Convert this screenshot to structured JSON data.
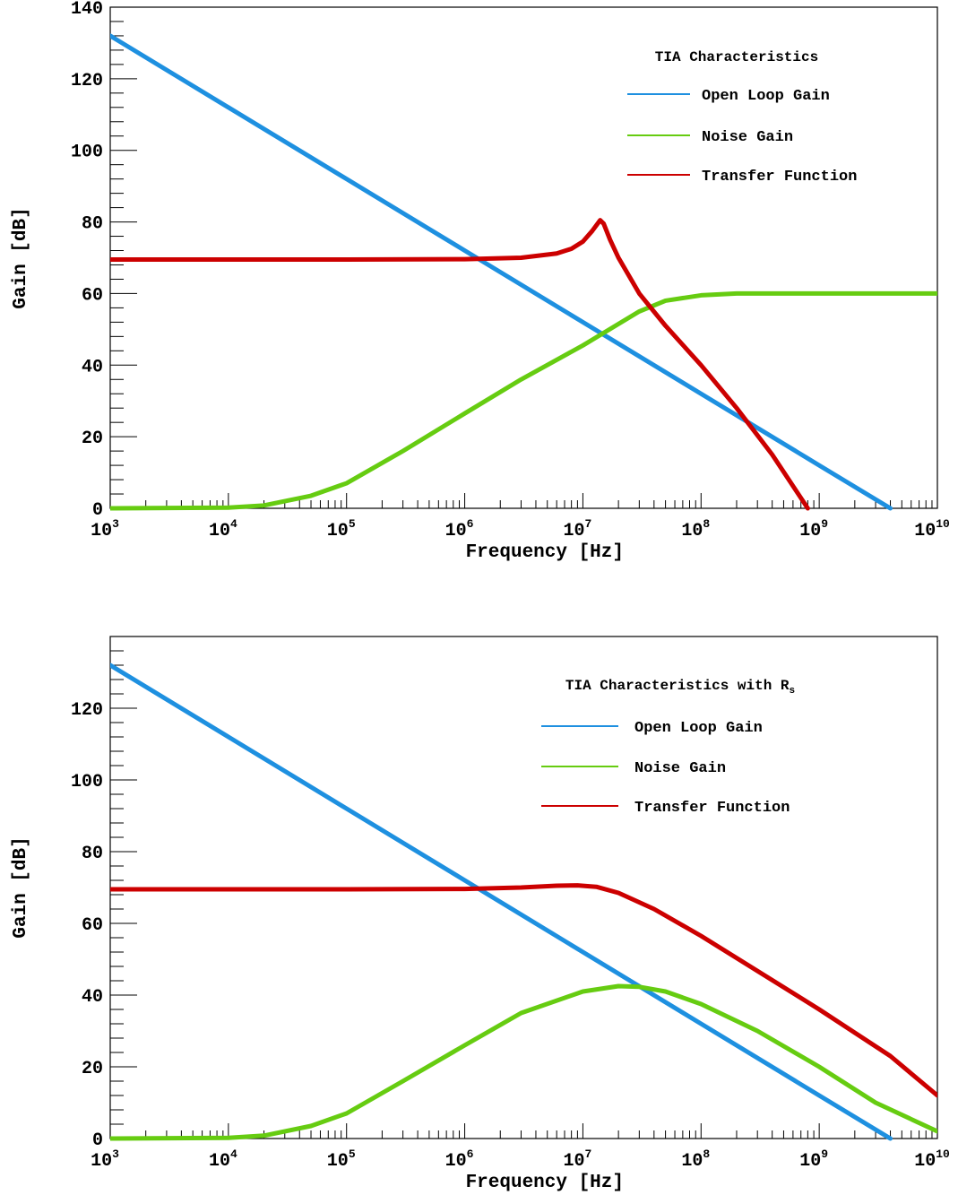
{
  "chart_data": [
    {
      "type": "line",
      "title": "",
      "xlabel": "Frequency [Hz]",
      "ylabel": "Gain [dB]",
      "xscale": "log",
      "xlim": [
        1000,
        10000000000
      ],
      "ylim": [
        0,
        140
      ],
      "grid": false,
      "x_tick_labels": [
        {
          "base": "10",
          "exp": "3"
        },
        {
          "base": "10",
          "exp": "4"
        },
        {
          "base": "10",
          "exp": "5"
        },
        {
          "base": "10",
          "exp": "6"
        },
        {
          "base": "10",
          "exp": "7"
        },
        {
          "base": "10",
          "exp": "8"
        },
        {
          "base": "10",
          "exp": "9"
        },
        {
          "base": "10",
          "exp": "10"
        }
      ],
      "y_tick_labels": [
        "0",
        "20",
        "40",
        "60",
        "80",
        "100",
        "120",
        "140"
      ],
      "legend": {
        "title": "TIA Characteristics",
        "title_subscript": "",
        "placement": "top-right",
        "entries": [
          "Open Loop Gain",
          "Noise Gain",
          "Transfer Function"
        ]
      },
      "series": [
        {
          "name": "Open Loop Gain",
          "color": "#1e90e0",
          "x": [
            1000,
            10000,
            100000,
            1000000,
            10000000,
            100000000,
            1000000000,
            4000000000
          ],
          "y": [
            132,
            112,
            92,
            72,
            52,
            32,
            12,
            0
          ]
        },
        {
          "name": "Noise Gain",
          "color": "#66cc11",
          "x": [
            1000,
            10000,
            20000,
            50000,
            100000,
            300000,
            1000000,
            3000000,
            10000000,
            20000000,
            30000000,
            50000000,
            100000000,
            200000000,
            500000000,
            1000000000,
            10000000000
          ],
          "y": [
            0,
            0.2,
            0.8,
            3.5,
            7,
            16,
            26.5,
            36,
            45.5,
            51.5,
            55,
            58,
            59.5,
            60,
            60,
            60,
            60
          ]
        },
        {
          "name": "Transfer Function",
          "color": "#cc0000",
          "x": [
            1000,
            100000,
            1000000,
            3000000,
            6000000,
            8000000,
            10000000,
            12000000,
            14000000,
            15000000,
            17000000,
            20000000,
            30000000,
            50000000,
            100000000,
            200000000,
            400000000,
            800000000
          ],
          "y": [
            69.5,
            69.5,
            69.6,
            70,
            71.2,
            72.5,
            74.5,
            77.5,
            80.5,
            79.5,
            75,
            70,
            60,
            51,
            40,
            28,
            15,
            0
          ]
        }
      ]
    },
    {
      "type": "line",
      "title": "",
      "xlabel": "Frequency [Hz]",
      "ylabel": "Gain [dB]",
      "xscale": "log",
      "xlim": [
        1000,
        10000000000
      ],
      "ylim": [
        0,
        140
      ],
      "grid": false,
      "x_tick_labels": [
        {
          "base": "10",
          "exp": "3"
        },
        {
          "base": "10",
          "exp": "4"
        },
        {
          "base": "10",
          "exp": "5"
        },
        {
          "base": "10",
          "exp": "6"
        },
        {
          "base": "10",
          "exp": "7"
        },
        {
          "base": "10",
          "exp": "8"
        },
        {
          "base": "10",
          "exp": "9"
        },
        {
          "base": "10",
          "exp": "10"
        }
      ],
      "y_tick_labels": [
        "0",
        "20",
        "40",
        "60",
        "80",
        "100",
        "120"
      ],
      "legend": {
        "title": "TIA Characteristics with R",
        "title_subscript": "s",
        "placement": "top-right",
        "entries": [
          "Open Loop Gain",
          "Noise Gain",
          "Transfer Function"
        ]
      },
      "series": [
        {
          "name": "Open Loop Gain",
          "color": "#1e90e0",
          "x": [
            1000,
            10000,
            100000,
            1000000,
            10000000,
            100000000,
            1000000000,
            4000000000
          ],
          "y": [
            132,
            112,
            92,
            72,
            52,
            32,
            12,
            0
          ]
        },
        {
          "name": "Noise Gain",
          "color": "#66cc11",
          "x": [
            1000,
            10000,
            20000,
            50000,
            100000,
            300000,
            1000000,
            3000000,
            10000000,
            20000000,
            30000000,
            50000000,
            100000000,
            300000000,
            1000000000,
            3000000000,
            10000000000
          ],
          "y": [
            0,
            0.2,
            0.8,
            3.5,
            7,
            16,
            26,
            35,
            41,
            42.5,
            42.3,
            41,
            37.5,
            30,
            20,
            10,
            2
          ]
        },
        {
          "name": "Transfer Function",
          "color": "#cc0000",
          "x": [
            1000,
            100000,
            1000000,
            3000000,
            6000000,
            9000000,
            13000000,
            20000000,
            40000000,
            100000000,
            1000000000,
            4000000000,
            10000000000
          ],
          "y": [
            69.5,
            69.5,
            69.6,
            70,
            70.5,
            70.6,
            70.2,
            68.5,
            64,
            56.5,
            36,
            23,
            12
          ]
        }
      ]
    }
  ]
}
